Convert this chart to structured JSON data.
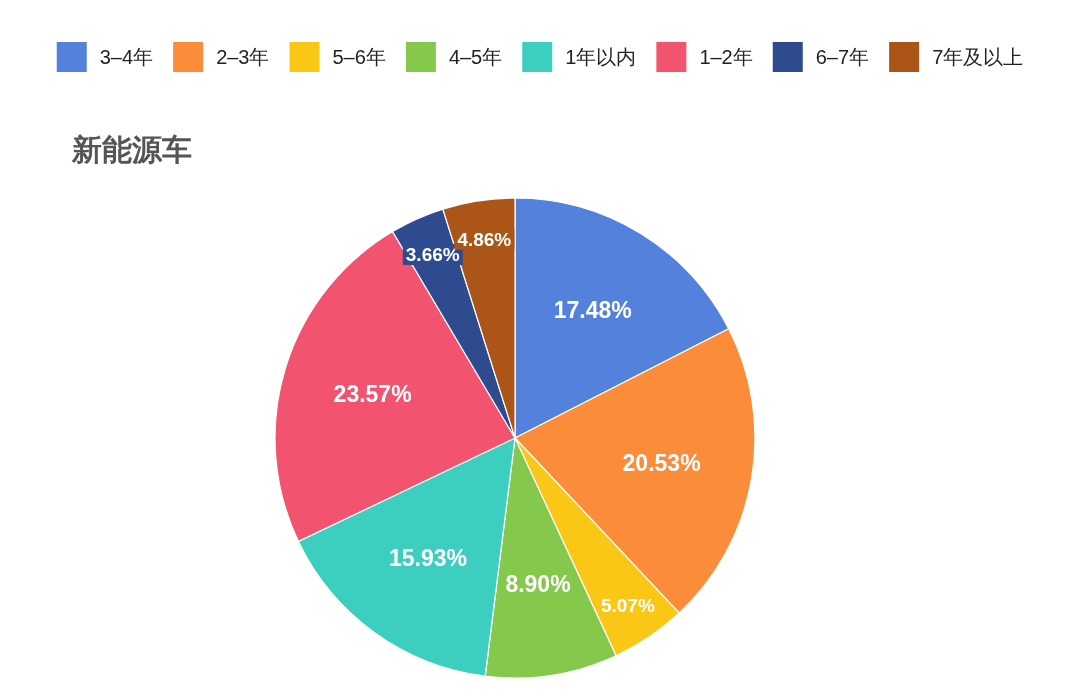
{
  "chart_data": {
    "type": "pie",
    "title": "新能源车",
    "categories": [
      "3–4年",
      "2–3年",
      "5–6年",
      "4–5年",
      "1年以内",
      "1–2年",
      "6–7年",
      "7年及以上"
    ],
    "values": [
      17.48,
      20.53,
      5.07,
      8.9,
      15.93,
      23.57,
      3.66,
      4.86
    ],
    "value_labels": [
      "17.48%",
      "20.53%",
      "5.07%",
      "8.90%",
      "15.93%",
      "23.57%",
      "3.66%",
      "4.86%"
    ],
    "colors": [
      "#5381dc",
      "#fb8c3a",
      "#fac716",
      "#84c94c",
      "#3ccfc0",
      "#f2536f",
      "#2d4b8e",
      "#ab5618"
    ],
    "legend": "top"
  }
}
